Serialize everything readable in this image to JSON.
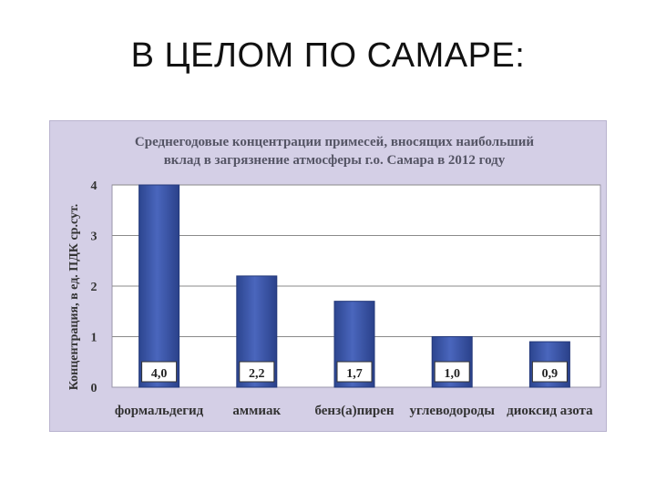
{
  "slide": {
    "title": "В ЦЕЛОМ ПО САМАРЕ:"
  },
  "chart_data": {
    "type": "bar",
    "title_lines": [
      "Среднегодовые концентрации примесей, вносящих наибольший",
      "вклад в загрязнение атмосферы  г.о. Самара в 2012 году"
    ],
    "ylabel": "Концентрация, в ед. ПДК ср.сут.",
    "xlabel": "",
    "categories": [
      "формальдегид",
      "аммиак",
      "бенз(а)пирен",
      "углеводороды",
      "диоксид азота"
    ],
    "values": [
      4.0,
      2.2,
      1.7,
      1.0,
      0.9
    ],
    "data_labels": [
      "4,0",
      "2,2",
      "1,7",
      "1,0",
      "0,9"
    ],
    "ylim": [
      0,
      4
    ],
    "yticks": [
      0,
      1,
      2,
      3,
      4
    ],
    "grid": true,
    "legend": "none",
    "colors": {
      "bar": "#3a55a8",
      "bar_edge": "#24397a",
      "plot_bg": "#ffffff",
      "panel_bg": "#d4cfe6"
    }
  }
}
